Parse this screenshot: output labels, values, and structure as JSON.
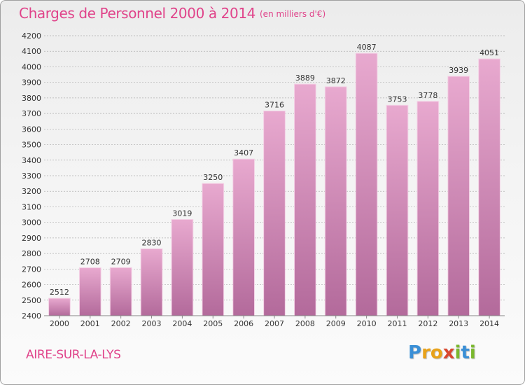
{
  "header": {
    "title": "Charges de Personnel 2000 à 2014",
    "subtitle": "(en milliers d'€)"
  },
  "footer": {
    "commune": "AIRE-SUR-LA-LYS",
    "brand": "Proxiti",
    "brand_colors": [
      "#3a8fd6",
      "#e8a21a",
      "#e8a21a",
      "#d9462f",
      "#7ab82e",
      "#3a8fd6",
      "#7ab82e"
    ]
  },
  "colors": {
    "accent": "#e0438a",
    "bar_top": "#e8a9cf",
    "bar_bottom": "#b36a9b",
    "grid": "#b0b0b0"
  },
  "chart_data": {
    "type": "bar",
    "categories": [
      "2000",
      "2001",
      "2002",
      "2003",
      "2004",
      "2005",
      "2006",
      "2007",
      "2008",
      "2009",
      "2010",
      "2011",
      "2012",
      "2013",
      "2014"
    ],
    "values": [
      2512,
      2708,
      2709,
      2830,
      3019,
      3250,
      3407,
      3716,
      3889,
      3872,
      4087,
      3753,
      3778,
      3939,
      4051
    ],
    "ylim": [
      2400,
      4200
    ],
    "ytick_step": 100,
    "grid": true
  }
}
